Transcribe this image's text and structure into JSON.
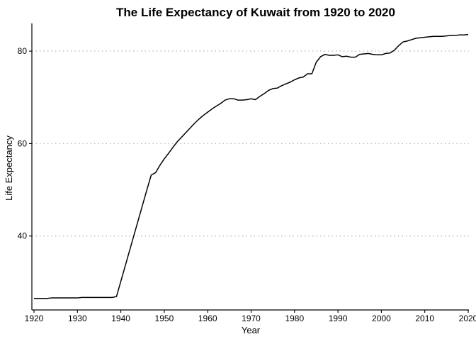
{
  "chart_data": {
    "type": "line",
    "title": "The Life Expectancy of Kuwait from 1920 to 2020",
    "xlabel": "Year",
    "ylabel": "Life Expectancy",
    "xlim": [
      1920,
      2020
    ],
    "ylim": [
      24,
      86
    ],
    "x_ticks": [
      1920,
      1930,
      1940,
      1950,
      1960,
      1970,
      1980,
      1990,
      2000,
      2010,
      2020
    ],
    "y_ticks": [
      40,
      60,
      80
    ],
    "grid": "horizontal dotted",
    "legend": "none",
    "series": [
      {
        "color": "#000000",
        "points": [
          [
            1920,
            26.5
          ],
          [
            1921,
            26.5
          ],
          [
            1922,
            26.5
          ],
          [
            1923,
            26.5
          ],
          [
            1924,
            26.6
          ],
          [
            1925,
            26.6
          ],
          [
            1926,
            26.6
          ],
          [
            1927,
            26.6
          ],
          [
            1928,
            26.6
          ],
          [
            1929,
            26.6
          ],
          [
            1930,
            26.6
          ],
          [
            1931,
            26.7
          ],
          [
            1932,
            26.7
          ],
          [
            1933,
            26.7
          ],
          [
            1934,
            26.7
          ],
          [
            1935,
            26.7
          ],
          [
            1936,
            26.7
          ],
          [
            1937,
            26.7
          ],
          [
            1938,
            26.7
          ],
          [
            1939,
            26.9
          ],
          [
            1940,
            30.2
          ],
          [
            1941,
            33.5
          ],
          [
            1942,
            36.8
          ],
          [
            1943,
            40.1
          ],
          [
            1944,
            43.4
          ],
          [
            1945,
            46.7
          ],
          [
            1946,
            50.0
          ],
          [
            1947,
            53.2
          ],
          [
            1948,
            53.7
          ],
          [
            1949,
            55.3
          ],
          [
            1950,
            56.7
          ],
          [
            1951,
            57.9
          ],
          [
            1952,
            59.2
          ],
          [
            1953,
            60.4
          ],
          [
            1954,
            61.4
          ],
          [
            1955,
            62.4
          ],
          [
            1956,
            63.4
          ],
          [
            1957,
            64.4
          ],
          [
            1958,
            65.3
          ],
          [
            1959,
            66.1
          ],
          [
            1960,
            66.8
          ],
          [
            1961,
            67.5
          ],
          [
            1962,
            68.1
          ],
          [
            1963,
            68.7
          ],
          [
            1964,
            69.4
          ],
          [
            1965,
            69.7
          ],
          [
            1966,
            69.7
          ],
          [
            1967,
            69.4
          ],
          [
            1968,
            69.4
          ],
          [
            1969,
            69.5
          ],
          [
            1970,
            69.7
          ],
          [
            1971,
            69.5
          ],
          [
            1972,
            70.2
          ],
          [
            1973,
            70.8
          ],
          [
            1974,
            71.5
          ],
          [
            1975,
            71.9
          ],
          [
            1976,
            72.0
          ],
          [
            1977,
            72.5
          ],
          [
            1978,
            72.9
          ],
          [
            1979,
            73.3
          ],
          [
            1980,
            73.8
          ],
          [
            1981,
            74.2
          ],
          [
            1982,
            74.4
          ],
          [
            1983,
            75.1
          ],
          [
            1984,
            75.1
          ],
          [
            1985,
            77.6
          ],
          [
            1986,
            78.8
          ],
          [
            1987,
            79.3
          ],
          [
            1988,
            79.1
          ],
          [
            1989,
            79.1
          ],
          [
            1990,
            79.2
          ],
          [
            1991,
            78.8
          ],
          [
            1992,
            78.9
          ],
          [
            1993,
            78.7
          ],
          [
            1994,
            78.7
          ],
          [
            1995,
            79.3
          ],
          [
            1996,
            79.4
          ],
          [
            1997,
            79.5
          ],
          [
            1998,
            79.3
          ],
          [
            1999,
            79.2
          ],
          [
            2000,
            79.2
          ],
          [
            2001,
            79.5
          ],
          [
            2002,
            79.6
          ],
          [
            2003,
            80.2
          ],
          [
            2004,
            81.2
          ],
          [
            2005,
            82.0
          ],
          [
            2006,
            82.2
          ],
          [
            2007,
            82.5
          ],
          [
            2008,
            82.8
          ],
          [
            2009,
            82.9
          ],
          [
            2010,
            83.0
          ],
          [
            2011,
            83.1
          ],
          [
            2012,
            83.2
          ],
          [
            2013,
            83.2
          ],
          [
            2014,
            83.2
          ],
          [
            2015,
            83.3
          ],
          [
            2016,
            83.4
          ],
          [
            2017,
            83.4
          ],
          [
            2018,
            83.5
          ],
          [
            2019,
            83.5
          ],
          [
            2020,
            83.6
          ]
        ]
      }
    ]
  }
}
